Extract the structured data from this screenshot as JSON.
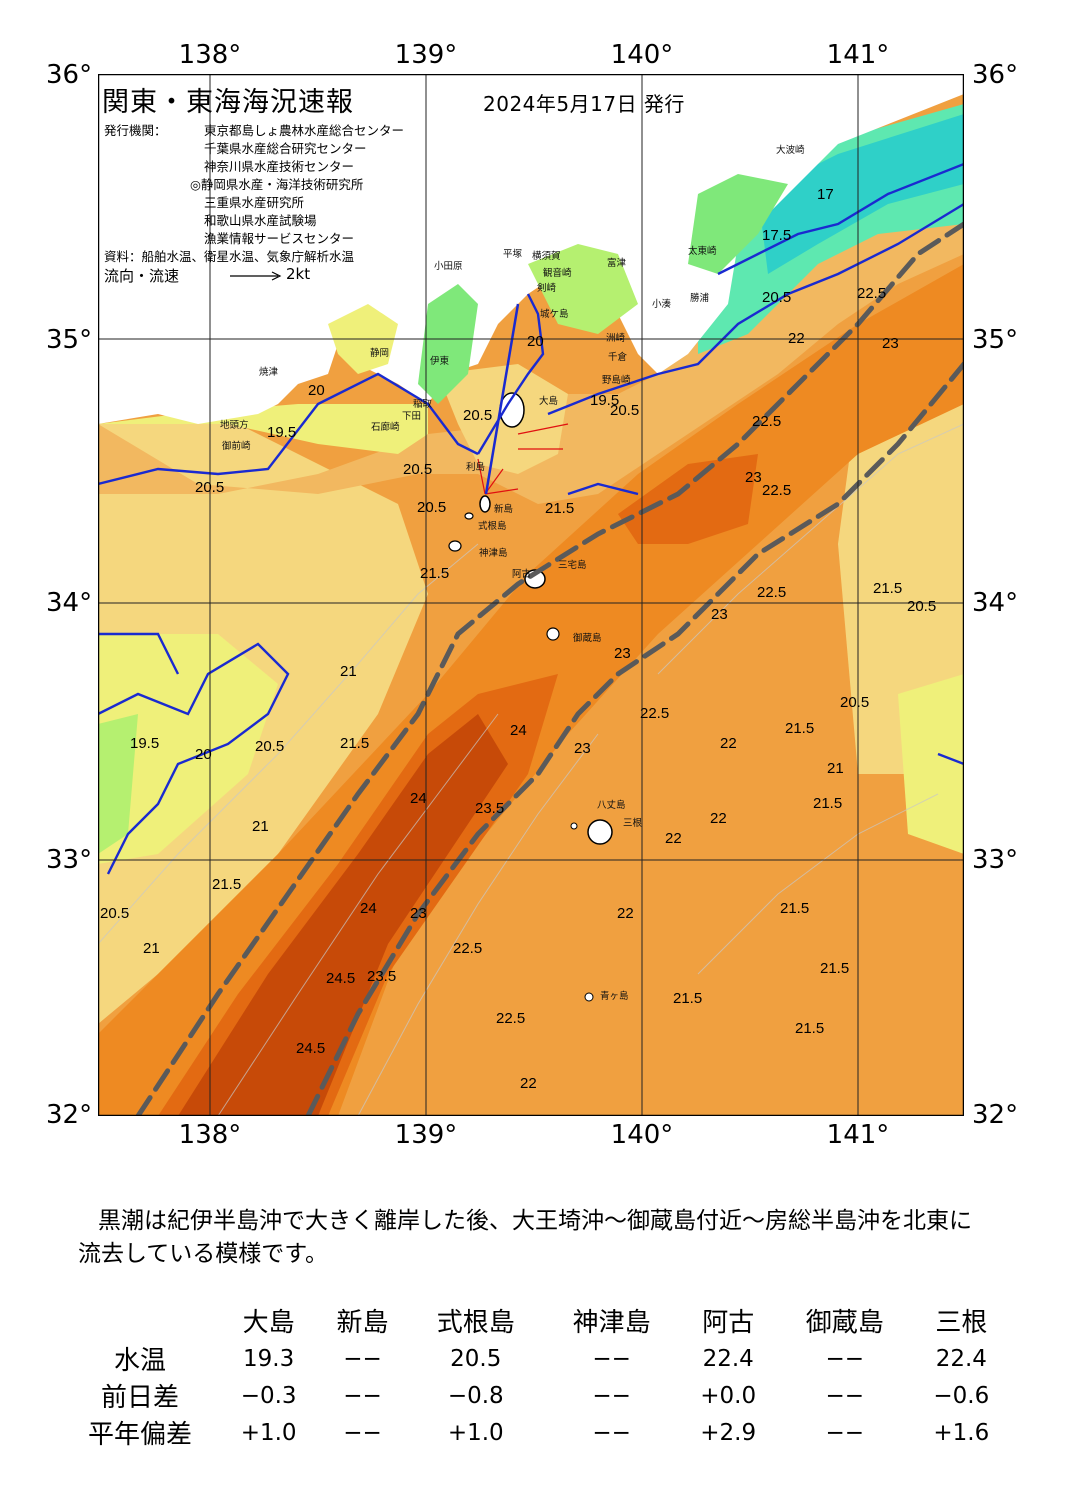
{
  "header": {
    "title": "関東・東海海況速報",
    "issued": "2024年5月17日 発行",
    "institutions_label": "発行機関：",
    "institutions": [
      "東京都島しょ農林水産総合センター",
      "千葉県水産総合研究センター",
      "神奈川県水産技術センター",
      "◎静岡県水産・海洋技術研究所",
      "三重県水産研究所",
      "和歌山県水産試験場",
      "漁業情報サービスセンター"
    ],
    "source": "資料：船舶水温、衛星水温、気象庁解析水温",
    "flow_label": "流向・流速",
    "flow_scale": "2kt"
  },
  "axes": {
    "lon_top": [
      "138°",
      "139°",
      "140°",
      "141°"
    ],
    "lon_bottom": [
      "138°",
      "139°",
      "140°",
      "141°"
    ],
    "lat_left": [
      "36°",
      "35°",
      "34°",
      "33°",
      "32°"
    ],
    "lat_right": [
      "36°",
      "35°",
      "34°",
      "33°",
      "32°"
    ]
  },
  "places": [
    {
      "name": "大波崎"
    },
    {
      "name": "太東崎"
    },
    {
      "name": "小湊"
    },
    {
      "name": "勝浦"
    },
    {
      "name": "富津"
    },
    {
      "name": "平塚"
    },
    {
      "name": "横須賀"
    },
    {
      "name": "観音崎"
    },
    {
      "name": "剣崎"
    },
    {
      "name": "城ケ島"
    },
    {
      "name": "洲崎"
    },
    {
      "name": "野島崎"
    },
    {
      "name": "千倉"
    },
    {
      "name": "小田原"
    },
    {
      "name": "御前崎"
    },
    {
      "name": "焼津"
    },
    {
      "name": "地頭方"
    },
    {
      "name": "静岡"
    },
    {
      "name": "伊東"
    },
    {
      "name": "稲取"
    },
    {
      "name": "下田"
    },
    {
      "name": "石廊崎"
    },
    {
      "name": "大島"
    },
    {
      "name": "利島"
    },
    {
      "name": "新島"
    },
    {
      "name": "式根島"
    },
    {
      "name": "神津島"
    },
    {
      "name": "三宅島"
    },
    {
      "name": "阿古"
    },
    {
      "name": "御蔵島"
    },
    {
      "name": "八丈島"
    },
    {
      "name": "三根"
    },
    {
      "name": "青ヶ島"
    }
  ],
  "isotherm_labels": [
    "17",
    "17.5",
    "19.5",
    "20",
    "20.5",
    "21",
    "21.5",
    "22",
    "22.5",
    "23",
    "23.5",
    "24",
    "24.5"
  ],
  "colors": {
    "land": "#ffffff",
    "t17": "#2fd0c8",
    "t18": "#5ee8b0",
    "t19": "#7fe87a",
    "t19_5": "#b5f070",
    "t20": "#eff07a",
    "t20_5": "#f5d77e",
    "t21": "#f2b860",
    "t21_5": "#f0a040",
    "t22": "#ee8a22",
    "t23": "#e36a12",
    "t24": "#c74a08",
    "isoline": "#1a2ad0",
    "kuroshio": "#606060",
    "flow_arrow": "#e01010"
  },
  "summary": "黒潮は紀伊半島沖で大きく離岸した後、大王埼沖～御蔵島付近～房総半島沖を北東に流去している模様です。",
  "table": {
    "stations": [
      "大島",
      "新島",
      "式根島",
      "神津島",
      "阿古",
      "御蔵島",
      "三根"
    ],
    "rows": [
      {
        "label": "水温",
        "values": [
          "19.3",
          "−−",
          "20.5",
          "−−",
          "22.4",
          "−−",
          "22.4"
        ]
      },
      {
        "label": "前日差",
        "values": [
          "−0.3",
          "−−",
          "−0.8",
          "−−",
          "+0.0",
          "−−",
          "−0.6"
        ]
      },
      {
        "label": "平年偏差",
        "values": [
          "+1.0",
          "−−",
          "+1.0",
          "−−",
          "+2.9",
          "−−",
          "+1.6"
        ]
      }
    ]
  }
}
